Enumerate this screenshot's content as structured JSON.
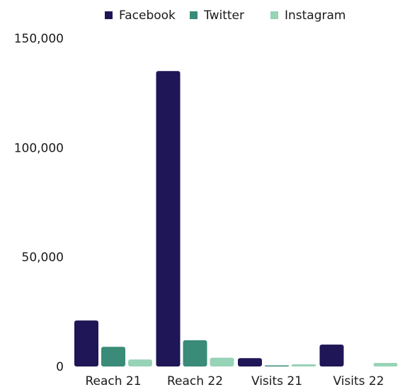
{
  "chart_data": {
    "type": "bar",
    "title": "",
    "xlabel": "",
    "ylabel": "",
    "categories": [
      "Reach 21",
      "Reach 22",
      "Visits 21",
      "Visits 22"
    ],
    "series": [
      {
        "name": "Facebook",
        "color": "#1e1656",
        "values": [
          21000,
          135000,
          3800,
          10000
        ]
      },
      {
        "name": "Twitter",
        "color": "#3a8b77",
        "values": [
          9000,
          12000,
          500,
          0
        ]
      },
      {
        "name": "Instagram",
        "color": "#97d3b6",
        "values": [
          3200,
          4000,
          1000,
          1600
        ]
      }
    ],
    "ylim": [
      0,
      150000
    ],
    "yticks": [
      {
        "value": 0,
        "label": "0"
      },
      {
        "value": 50000,
        "label": "50,000"
      },
      {
        "value": 100000,
        "label": "100,000"
      },
      {
        "value": 150000,
        "label": "150,000"
      }
    ],
    "grid": false,
    "legend": "top-center"
  }
}
